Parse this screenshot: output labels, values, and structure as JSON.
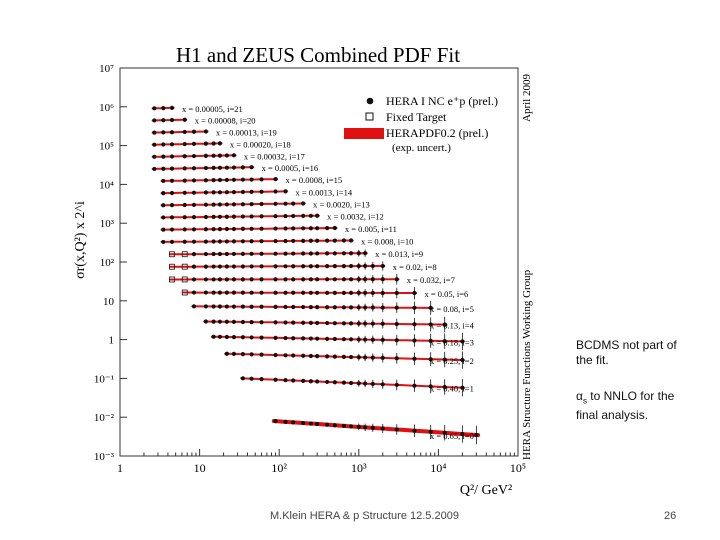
{
  "chart_data": {
    "type": "scatter",
    "title": "H1 and ZEUS Combined PDF Fit",
    "ylabel": "σr(x,Q²) x 2^i",
    "xlabel": "Q²/ GeV²",
    "x_scale": "log",
    "y_scale": "log",
    "xlim": [
      1,
      100000
    ],
    "ylim": [
      0.001,
      10000000
    ],
    "x_ticks": [
      "1",
      "10",
      "10²",
      "10³",
      "10⁴",
      "10⁵"
    ],
    "y_ticks": [
      "10⁷",
      "10⁶",
      "10⁵",
      "10⁴",
      "10³",
      "10²",
      "10",
      "1",
      "10⁻¹",
      "10⁻²",
      "10⁻³"
    ],
    "legend": [
      {
        "label": "HERA I NC e⁺p (prel.)",
        "marker": "filled-circle"
      },
      {
        "label": "Fixed Target",
        "marker": "open-square"
      },
      {
        "label": "HERAPDF0.2 (prel.)",
        "marker": "red-band"
      },
      {
        "label": "(exp. uncert.)",
        "marker": "none"
      }
    ],
    "side_label": "HERA Structure Functions Working Group",
    "date_label": "April 2009",
    "series": [
      {
        "name": "x = 0.00005, i=21",
        "x": 5e-05,
        "i": 21,
        "q2": [
          2.7,
          3.5,
          4.5
        ]
      },
      {
        "name": "x = 0.00008, i=20",
        "x": 8e-05,
        "i": 20,
        "q2": [
          2.7,
          3.5,
          4.5,
          6.5
        ]
      },
      {
        "name": "x = 0.00013, i=19",
        "x": 0.00013,
        "i": 19,
        "q2": [
          2.7,
          3.5,
          4.5,
          6.5,
          8.5,
          12
        ]
      },
      {
        "name": "x = 0.00020, i=18",
        "x": 0.0002,
        "i": 18,
        "q2": [
          2.7,
          3.5,
          4.5,
          6.5,
          8.5,
          12,
          15,
          18
        ]
      },
      {
        "name": "x = 0.00032, i=17",
        "x": 0.00032,
        "i": 17,
        "q2": [
          2.7,
          3.5,
          4.5,
          6.5,
          8.5,
          12,
          15,
          18,
          22,
          27
        ]
      },
      {
        "name": "x = 0.0005, i=16",
        "x": 0.0005,
        "i": 16,
        "q2": [
          2.7,
          3.5,
          4.5,
          6.5,
          8.5,
          12,
          15,
          18,
          22,
          27,
          35,
          45
        ]
      },
      {
        "name": "x = 0.0008, i=15",
        "x": 0.0008,
        "i": 15,
        "q2": [
          3.5,
          4.5,
          6.5,
          8.5,
          12,
          15,
          18,
          22,
          27,
          35,
          45,
          60,
          90
        ]
      },
      {
        "name": "x = 0.0013, i=14",
        "x": 0.0013,
        "i": 14,
        "q2": [
          3.5,
          4.5,
          6.5,
          8.5,
          12,
          15,
          18,
          22,
          27,
          35,
          45,
          60,
          90,
          120
        ]
      },
      {
        "name": "x = 0.0020, i=13",
        "x": 0.002,
        "i": 13,
        "q2": [
          3.5,
          4.5,
          6.5,
          8.5,
          12,
          15,
          18,
          22,
          27,
          35,
          45,
          60,
          90,
          120,
          150,
          200
        ]
      },
      {
        "name": "x = 0.0032, i=12",
        "x": 0.0032,
        "i": 12,
        "q2": [
          3.5,
          4.5,
          6.5,
          8.5,
          12,
          15,
          18,
          22,
          27,
          35,
          45,
          60,
          90,
          120,
          150,
          200,
          250,
          300
        ]
      },
      {
        "name": "x = 0.005, i=11",
        "x": 0.005,
        "i": 11,
        "q2": [
          3.5,
          4.5,
          6.5,
          8.5,
          12,
          15,
          18,
          22,
          27,
          35,
          45,
          60,
          90,
          120,
          150,
          200,
          250,
          300,
          400,
          500
        ]
      },
      {
        "name": "x = 0.008, i=10",
        "x": 0.008,
        "i": 10,
        "q2": [
          3.5,
          4.5,
          6.5,
          8.5,
          12,
          15,
          18,
          22,
          27,
          35,
          45,
          60,
          90,
          120,
          150,
          200,
          250,
          300,
          400,
          500,
          650,
          800
        ]
      },
      {
        "name": "x = 0.013, i=9",
        "x": 0.013,
        "i": 9,
        "q2": [
          4.5,
          6.5,
          8.5,
          12,
          15,
          18,
          22,
          27,
          35,
          45,
          60,
          90,
          120,
          150,
          200,
          250,
          300,
          400,
          500,
          650,
          800,
          1000,
          1200
        ]
      },
      {
        "name": "x = 0.02, i=8",
        "x": 0.02,
        "i": 8,
        "q2": [
          4.5,
          6.5,
          8.5,
          12,
          15,
          18,
          22,
          27,
          35,
          45,
          60,
          90,
          120,
          150,
          200,
          250,
          300,
          400,
          500,
          650,
          800,
          1000,
          1200,
          1500,
          2000
        ]
      },
      {
        "name": "x = 0.032, i=7",
        "x": 0.032,
        "i": 7,
        "q2": [
          4.5,
          6.5,
          8.5,
          12,
          15,
          18,
          22,
          27,
          35,
          45,
          60,
          90,
          120,
          150,
          200,
          250,
          300,
          400,
          500,
          650,
          800,
          1000,
          1200,
          1500,
          2000,
          3000
        ]
      },
      {
        "name": "x = 0.05, i=6",
        "x": 0.05,
        "i": 6,
        "q2": [
          6.5,
          8.5,
          12,
          15,
          18,
          22,
          27,
          35,
          45,
          60,
          90,
          120,
          150,
          200,
          250,
          300,
          400,
          500,
          650,
          800,
          1000,
          1200,
          1500,
          2000,
          3000,
          5000
        ]
      },
      {
        "name": "x = 0.08, i=5",
        "x": 0.08,
        "i": 5,
        "q2": [
          8.5,
          12,
          15,
          18,
          22,
          27,
          35,
          45,
          60,
          90,
          120,
          150,
          200,
          250,
          300,
          400,
          500,
          650,
          800,
          1000,
          1200,
          1500,
          2000,
          3000,
          5000,
          8000
        ]
      },
      {
        "name": "x = 0.13, i=4",
        "x": 0.13,
        "i": 4,
        "q2": [
          12,
          15,
          18,
          22,
          27,
          35,
          45,
          60,
          90,
          120,
          150,
          200,
          250,
          300,
          400,
          500,
          650,
          800,
          1000,
          1200,
          1500,
          2000,
          3000,
          5000,
          8000,
          12000
        ]
      },
      {
        "name": "x = 0.18, i=3",
        "x": 0.18,
        "i": 3,
        "q2": [
          15,
          18,
          22,
          27,
          35,
          45,
          60,
          90,
          120,
          150,
          200,
          250,
          300,
          400,
          500,
          650,
          800,
          1000,
          1200,
          1500,
          2000,
          3000,
          5000,
          8000,
          12000,
          20000
        ]
      },
      {
        "name": "x = 0.25, i=2",
        "x": 0.25,
        "i": 2,
        "q2": [
          22,
          27,
          35,
          45,
          60,
          90,
          120,
          150,
          200,
          250,
          300,
          400,
          500,
          650,
          800,
          1000,
          1200,
          1500,
          2000,
          3000,
          5000,
          8000,
          12000,
          20000
        ]
      },
      {
        "name": "x = 0.40, i=1",
        "x": 0.4,
        "i": 1,
        "q2": [
          35,
          45,
          60,
          90,
          120,
          150,
          200,
          250,
          300,
          400,
          500,
          650,
          800,
          1000,
          1200,
          1500,
          2000,
          3000,
          5000,
          8000,
          12000,
          20000
        ]
      },
      {
        "name": "x = 0.65, i=0",
        "x": 0.65,
        "i": 0,
        "q2": [
          90,
          120,
          150,
          200,
          250,
          300,
          400,
          500,
          650,
          800,
          1000,
          1200,
          1500,
          2000,
          3000,
          5000,
          8000,
          12000,
          20000,
          30000
        ]
      }
    ]
  },
  "notes": {
    "bcdms": "BCDMS not part of the fit.",
    "alpha_symbol": "α",
    "alpha_sub": "s",
    "alpha_rest": " to NNLO for the final analysis."
  },
  "footer": {
    "text": "M.Klein HERA & p Structure 12.5.2009",
    "page": "26"
  },
  "colors": {
    "band": "#e01010",
    "points": "#111111",
    "axis": "#333333"
  }
}
